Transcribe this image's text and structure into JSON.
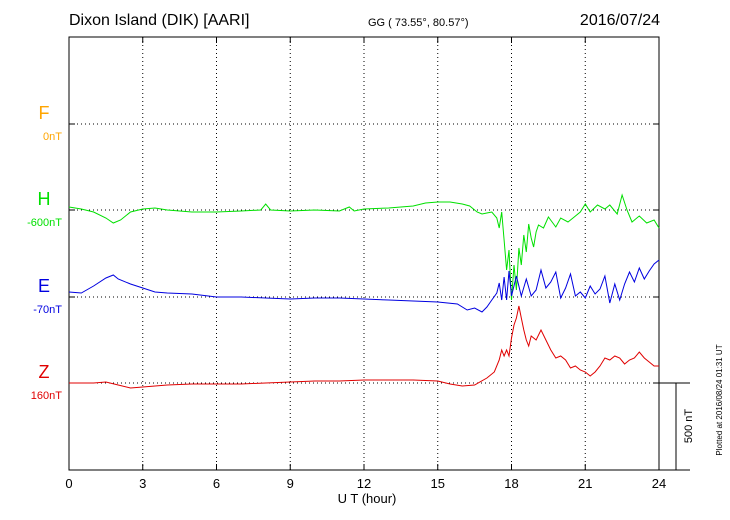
{
  "header": {
    "station": "Dixon Island (DIK)  [AARI]",
    "coords": "GG ( 73.55°,  80.57°)",
    "date": "2016/07/24"
  },
  "chart_data": {
    "type": "line",
    "xlabel": "U T (hour)",
    "xlim": [
      0,
      24
    ],
    "x_ticks": [
      "0",
      "3",
      "6",
      "9",
      "12",
      "15",
      "18",
      "21",
      "24"
    ],
    "scale_bar": "500 nT",
    "plotted_note": "Plotted at 2016/08/24 01:31 UT",
    "components": [
      {
        "letter": "F",
        "baseline": "0nT",
        "color": "#ffa500",
        "points": []
      },
      {
        "letter": "H",
        "baseline": "-600nT",
        "color": "#00e000",
        "points": [
          [
            0,
            207
          ],
          [
            0.5,
            209
          ],
          [
            1.0,
            212
          ],
          [
            1.5,
            218
          ],
          [
            1.8,
            223
          ],
          [
            2.1,
            220
          ],
          [
            2.5,
            212
          ],
          [
            3.0,
            209
          ],
          [
            3.5,
            208
          ],
          [
            4.0,
            210
          ],
          [
            5.0,
            212
          ],
          [
            6.0,
            212
          ],
          [
            7.0,
            211
          ],
          [
            7.8,
            210
          ],
          [
            8.0,
            204
          ],
          [
            8.2,
            210
          ],
          [
            9.0,
            211
          ],
          [
            10.0,
            210
          ],
          [
            11.0,
            211
          ],
          [
            11.4,
            207
          ],
          [
            11.6,
            211
          ],
          [
            12.0,
            209
          ],
          [
            13.0,
            208
          ],
          [
            14.0,
            206
          ],
          [
            14.5,
            203
          ],
          [
            15.0,
            202
          ],
          [
            15.5,
            202
          ],
          [
            16.0,
            204
          ],
          [
            16.3,
            206
          ],
          [
            16.6,
            212
          ],
          [
            16.8,
            214
          ],
          [
            17.0,
            213
          ],
          [
            17.2,
            212
          ],
          [
            17.4,
            218
          ],
          [
            17.5,
            228
          ],
          [
            17.6,
            212
          ],
          [
            17.7,
            240
          ],
          [
            17.8,
            270
          ],
          [
            17.9,
            250
          ],
          [
            18.0,
            300
          ],
          [
            18.1,
            265
          ],
          [
            18.2,
            290
          ],
          [
            18.3,
            248
          ],
          [
            18.4,
            265
          ],
          [
            18.5,
            235
          ],
          [
            18.6,
            252
          ],
          [
            18.7,
            224
          ],
          [
            18.8,
            238
          ],
          [
            18.9,
            247
          ],
          [
            19.0,
            232
          ],
          [
            19.1,
            225
          ],
          [
            19.3,
            228
          ],
          [
            19.5,
            217
          ],
          [
            19.8,
            227
          ],
          [
            20.0,
            218
          ],
          [
            20.3,
            222
          ],
          [
            20.5,
            218
          ],
          [
            20.8,
            212
          ],
          [
            21.0,
            204
          ],
          [
            21.2,
            212
          ],
          [
            21.5,
            205
          ],
          [
            21.8,
            209
          ],
          [
            22.0,
            205
          ],
          [
            22.3,
            214
          ],
          [
            22.5,
            195
          ],
          [
            22.7,
            210
          ],
          [
            22.9,
            222
          ],
          [
            23.2,
            216
          ],
          [
            23.5,
            223
          ],
          [
            23.8,
            220
          ],
          [
            24.0,
            228
          ]
        ]
      },
      {
        "letter": "E",
        "baseline": "-70nT",
        "color": "#0000e0",
        "points": [
          [
            0,
            292
          ],
          [
            0.5,
            293
          ],
          [
            1.0,
            286
          ],
          [
            1.5,
            278
          ],
          [
            1.8,
            275
          ],
          [
            2.0,
            279
          ],
          [
            2.5,
            284
          ],
          [
            3.0,
            288
          ],
          [
            3.5,
            292
          ],
          [
            4.0,
            293
          ],
          [
            5.0,
            294
          ],
          [
            6.0,
            297
          ],
          [
            7.0,
            297
          ],
          [
            8.0,
            298
          ],
          [
            9.0,
            299
          ],
          [
            10.0,
            298
          ],
          [
            11.0,
            298
          ],
          [
            12.0,
            299
          ],
          [
            13.0,
            300
          ],
          [
            14.0,
            301
          ],
          [
            15.0,
            302
          ],
          [
            15.8,
            304
          ],
          [
            16.2,
            310
          ],
          [
            16.5,
            308
          ],
          [
            16.8,
            312
          ],
          [
            17.0,
            307
          ],
          [
            17.2,
            300
          ],
          [
            17.4,
            293
          ],
          [
            17.5,
            283
          ],
          [
            17.6,
            300
          ],
          [
            17.7,
            277
          ],
          [
            17.8,
            300
          ],
          [
            17.9,
            271
          ],
          [
            18.0,
            296
          ],
          [
            18.2,
            276
          ],
          [
            18.4,
            296
          ],
          [
            18.6,
            279
          ],
          [
            18.8,
            296
          ],
          [
            19.0,
            290
          ],
          [
            19.2,
            270
          ],
          [
            19.4,
            288
          ],
          [
            19.6,
            282
          ],
          [
            19.8,
            272
          ],
          [
            20.0,
            298
          ],
          [
            20.2,
            288
          ],
          [
            20.4,
            274
          ],
          [
            20.6,
            296
          ],
          [
            20.8,
            292
          ],
          [
            21.0,
            298
          ],
          [
            21.2,
            286
          ],
          [
            21.4,
            294
          ],
          [
            21.6,
            289
          ],
          [
            21.8,
            276
          ],
          [
            22.0,
            303
          ],
          [
            22.2,
            284
          ],
          [
            22.4,
            300
          ],
          [
            22.6,
            284
          ],
          [
            22.8,
            272
          ],
          [
            23.0,
            282
          ],
          [
            23.2,
            268
          ],
          [
            23.4,
            279
          ],
          [
            23.6,
            271
          ],
          [
            23.8,
            264
          ],
          [
            24.0,
            260
          ]
        ]
      },
      {
        "letter": "Z",
        "baseline": "160nT",
        "color": "#e00000",
        "points": [
          [
            0,
            383
          ],
          [
            0.5,
            383
          ],
          [
            1.0,
            383
          ],
          [
            1.5,
            382
          ],
          [
            2.0,
            385
          ],
          [
            2.5,
            388
          ],
          [
            3.0,
            387
          ],
          [
            4.0,
            385
          ],
          [
            5.0,
            384
          ],
          [
            6.0,
            384
          ],
          [
            7.0,
            384
          ],
          [
            8.0,
            383
          ],
          [
            9.0,
            382
          ],
          [
            10.0,
            381
          ],
          [
            11.0,
            381
          ],
          [
            12.0,
            380
          ],
          [
            13.0,
            380
          ],
          [
            14.0,
            380
          ],
          [
            15.0,
            381
          ],
          [
            15.5,
            384
          ],
          [
            16.0,
            386
          ],
          [
            16.5,
            385
          ],
          [
            17.0,
            378
          ],
          [
            17.3,
            372
          ],
          [
            17.5,
            360
          ],
          [
            17.6,
            350
          ],
          [
            17.7,
            356
          ],
          [
            17.8,
            350
          ],
          [
            17.9,
            356
          ],
          [
            18.0,
            338
          ],
          [
            18.1,
            325
          ],
          [
            18.2,
            318
          ],
          [
            18.3,
            306
          ],
          [
            18.4,
            318
          ],
          [
            18.5,
            330
          ],
          [
            18.6,
            340
          ],
          [
            18.7,
            346
          ],
          [
            18.8,
            336
          ],
          [
            19.0,
            340
          ],
          [
            19.2,
            330
          ],
          [
            19.4,
            340
          ],
          [
            19.6,
            350
          ],
          [
            19.8,
            358
          ],
          [
            20.0,
            356
          ],
          [
            20.2,
            360
          ],
          [
            20.4,
            368
          ],
          [
            20.6,
            366
          ],
          [
            20.8,
            370
          ],
          [
            21.0,
            372
          ],
          [
            21.2,
            376
          ],
          [
            21.4,
            372
          ],
          [
            21.6,
            366
          ],
          [
            21.8,
            358
          ],
          [
            22.0,
            360
          ],
          [
            22.2,
            356
          ],
          [
            22.4,
            358
          ],
          [
            22.6,
            364
          ],
          [
            22.8,
            360
          ],
          [
            23.0,
            358
          ],
          [
            23.2,
            352
          ],
          [
            23.4,
            358
          ],
          [
            23.6,
            362
          ],
          [
            23.8,
            366
          ],
          [
            24.0,
            366
          ]
        ]
      }
    ]
  }
}
